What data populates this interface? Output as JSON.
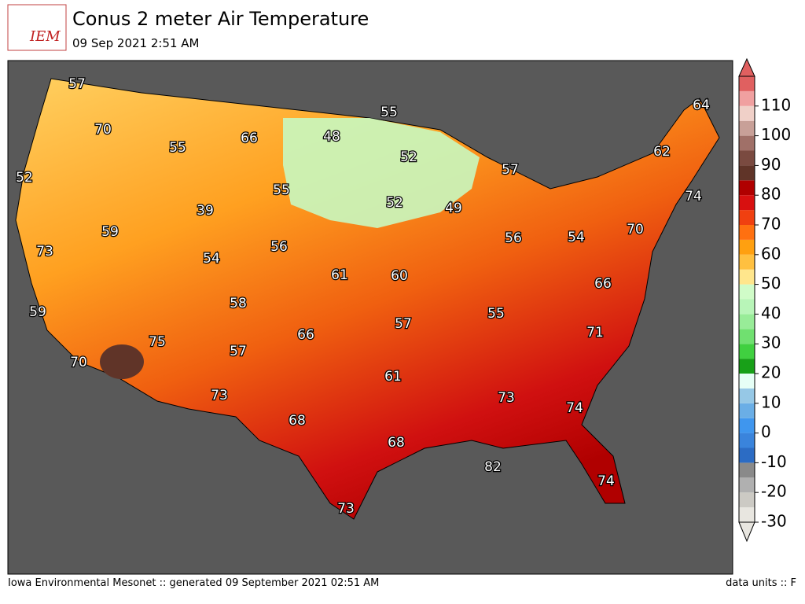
{
  "header": {
    "logo": "IEM",
    "title": "Conus 2 meter Air Temperature",
    "subtitle": "09 Sep 2021 2:51 AM"
  },
  "footer": {
    "left": "Iowa Environmental Mesonet :: generated 09 September 2021 02:51 AM",
    "right": "data units :: F"
  },
  "map": {
    "labels": [
      57,
      55,
      64,
      70,
      55,
      66,
      48,
      52,
      62,
      57,
      52,
      55,
      74,
      39,
      52,
      49,
      59,
      56,
      54,
      70,
      73,
      54,
      56,
      61,
      60,
      66,
      58,
      55,
      59,
      57,
      66,
      75,
      71,
      57,
      70,
      61,
      73,
      73,
      74,
      68,
      68,
      82,
      74,
      73
    ]
  },
  "colorbar": {
    "ylim": [
      -30,
      120
    ],
    "yticks": [
      -30,
      -20,
      -10,
      0,
      10,
      20,
      30,
      40,
      50,
      60,
      70,
      80,
      90,
      100,
      110
    ],
    "colors": [
      "#e8e6e0",
      "#cccac4",
      "#b0b0b0",
      "#8a8a8a",
      "#2c6cc4",
      "#3a84dc",
      "#3f96ee",
      "#6aaee6",
      "#96c8e6",
      "#e6fff6",
      "#18a018",
      "#40d040",
      "#70e070",
      "#98ec98",
      "#b8f5b8",
      "#d0fcc8",
      "#ffe68c",
      "#ffc040",
      "#ffa010",
      "#ff7010",
      "#f04010",
      "#d81010",
      "#b00000",
      "#603428",
      "#7a4a40",
      "#a07068",
      "#c8a098",
      "#f0d0c8",
      "#f0a0a0",
      "#e06060"
    ]
  }
}
